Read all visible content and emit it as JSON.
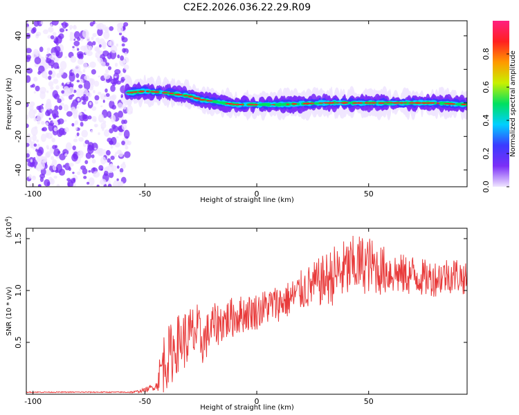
{
  "title": "C2E2.2026.036.22.29.R09",
  "chart_data": [
    {
      "type": "heatmap",
      "xlabel": "Height of straight line (km)",
      "ylabel": "Frequency (Hz)",
      "xlim": [
        -103,
        94
      ],
      "ylim": [
        -50,
        49
      ],
      "xticks": [
        -100,
        -50,
        0,
        50
      ],
      "xtick_labels": [
        "-100",
        "-50",
        "0",
        "50"
      ],
      "yticks": [
        -40,
        -20,
        0,
        20,
        40
      ],
      "ytick_labels": [
        "-40",
        "-20",
        "0",
        "20",
        "40"
      ],
      "noise_region_x": [
        -103,
        -58
      ],
      "ridge": {
        "x": [
          -58,
          -50,
          -40,
          -30,
          -25,
          -20,
          -15,
          -10,
          0,
          10,
          20,
          30,
          40,
          50,
          60,
          70,
          80,
          94
        ],
        "y": [
          6,
          7,
          6,
          4,
          2,
          1,
          0,
          -1,
          -1,
          -1,
          -0.5,
          0,
          0,
          0,
          0,
          0,
          0,
          -1
        ]
      },
      "colorbar": {
        "label": "Normalized spectral amplitude",
        "ticks": [
          0.0,
          0.2,
          0.4,
          0.6,
          0.8
        ],
        "tick_labels": [
          "0.0",
          "0.2",
          "0.4",
          "0.6",
          "0.8"
        ],
        "range": [
          0,
          1
        ],
        "colors": [
          "#f0e6ff",
          "#7b2ff7",
          "#3b3bff",
          "#00d0ff",
          "#00e060",
          "#c8f000",
          "#ff9900",
          "#ff2020",
          "#ff2080"
        ]
      }
    },
    {
      "type": "line",
      "xlabel": "Height of straight line (km)",
      "ylabel": "SNR (10 * v/v)",
      "y_scale_label": "(x10",
      "y_scale_exp": "4",
      "xlim": [
        -103,
        94
      ],
      "ylim": [
        0.0,
        1.6
      ],
      "xticks": [
        -100,
        -50,
        0,
        50
      ],
      "xtick_labels": [
        "-100",
        "-50",
        "0",
        "50"
      ],
      "yticks": [
        0.5,
        1.0,
        1.5
      ],
      "ytick_labels": [
        "0.5",
        "1.0",
        "1.5"
      ],
      "series": [
        {
          "name": "SNR",
          "color": "#e83a3a",
          "x": [
            -103,
            -90,
            -80,
            -70,
            -60,
            -55,
            -50,
            -45,
            -42,
            -38,
            -35,
            -30,
            -27,
            -24,
            -20,
            -15,
            -10,
            -5,
            0,
            5,
            10,
            15,
            20,
            25,
            30,
            35,
            40,
            45,
            50,
            55,
            60,
            65,
            70,
            75,
            80,
            85,
            90,
            94
          ],
          "y": [
            0.02,
            0.02,
            0.02,
            0.02,
            0.02,
            0.02,
            0.04,
            0.08,
            0.3,
            0.4,
            0.5,
            0.55,
            0.6,
            0.5,
            0.65,
            0.7,
            0.75,
            0.78,
            0.8,
            0.85,
            0.88,
            0.92,
            1.0,
            1.05,
            1.1,
            1.15,
            1.2,
            1.25,
            1.25,
            1.2,
            1.18,
            1.15,
            1.15,
            1.12,
            1.12,
            1.15,
            1.15,
            1.1
          ],
          "amplitude": [
            0.005,
            0.005,
            0.005,
            0.005,
            0.005,
            0.01,
            0.02,
            0.04,
            0.3,
            0.3,
            0.28,
            0.3,
            0.3,
            0.22,
            0.22,
            0.2,
            0.2,
            0.18,
            0.18,
            0.18,
            0.18,
            0.18,
            0.2,
            0.22,
            0.25,
            0.3,
            0.3,
            0.3,
            0.28,
            0.25,
            0.22,
            0.2,
            0.2,
            0.18,
            0.18,
            0.18,
            0.18,
            0.15
          ]
        }
      ]
    }
  ]
}
